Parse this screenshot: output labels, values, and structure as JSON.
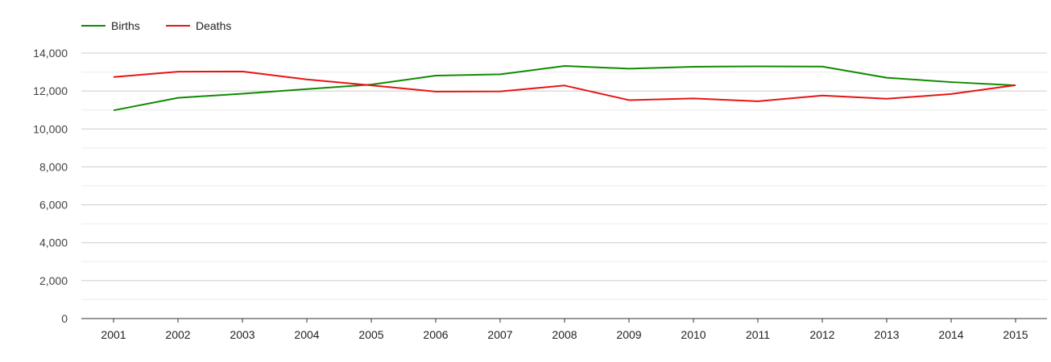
{
  "chart_data": {
    "type": "line",
    "title": "",
    "xlabel": "",
    "ylabel": "",
    "x": [
      "2001",
      "2002",
      "2003",
      "2004",
      "2005",
      "2006",
      "2007",
      "2008",
      "2009",
      "2010",
      "2011",
      "2012",
      "2013",
      "2014",
      "2015"
    ],
    "ylim": [
      0,
      14000
    ],
    "yticks": [
      0,
      2000,
      4000,
      6000,
      8000,
      10000,
      12000,
      14000
    ],
    "ytick_labels": [
      "0",
      "2,000",
      "4,000",
      "6,000",
      "8,000",
      "10,000",
      "12,000",
      "14,000"
    ],
    "grid": true,
    "minor_grid": true,
    "legend_position": "top-left",
    "series": [
      {
        "name": "Births",
        "color": "#108a00",
        "values": [
          10980,
          11640,
          11860,
          12100,
          12340,
          12810,
          12880,
          13320,
          13180,
          13280,
          13300,
          13290,
          12700,
          12470,
          12300
        ]
      },
      {
        "name": "Deaths",
        "color": "#e81414",
        "values": [
          12740,
          13020,
          13030,
          12610,
          12300,
          11970,
          11980,
          12290,
          11520,
          11610,
          11460,
          11760,
          11590,
          11840,
          12310
        ]
      }
    ]
  }
}
